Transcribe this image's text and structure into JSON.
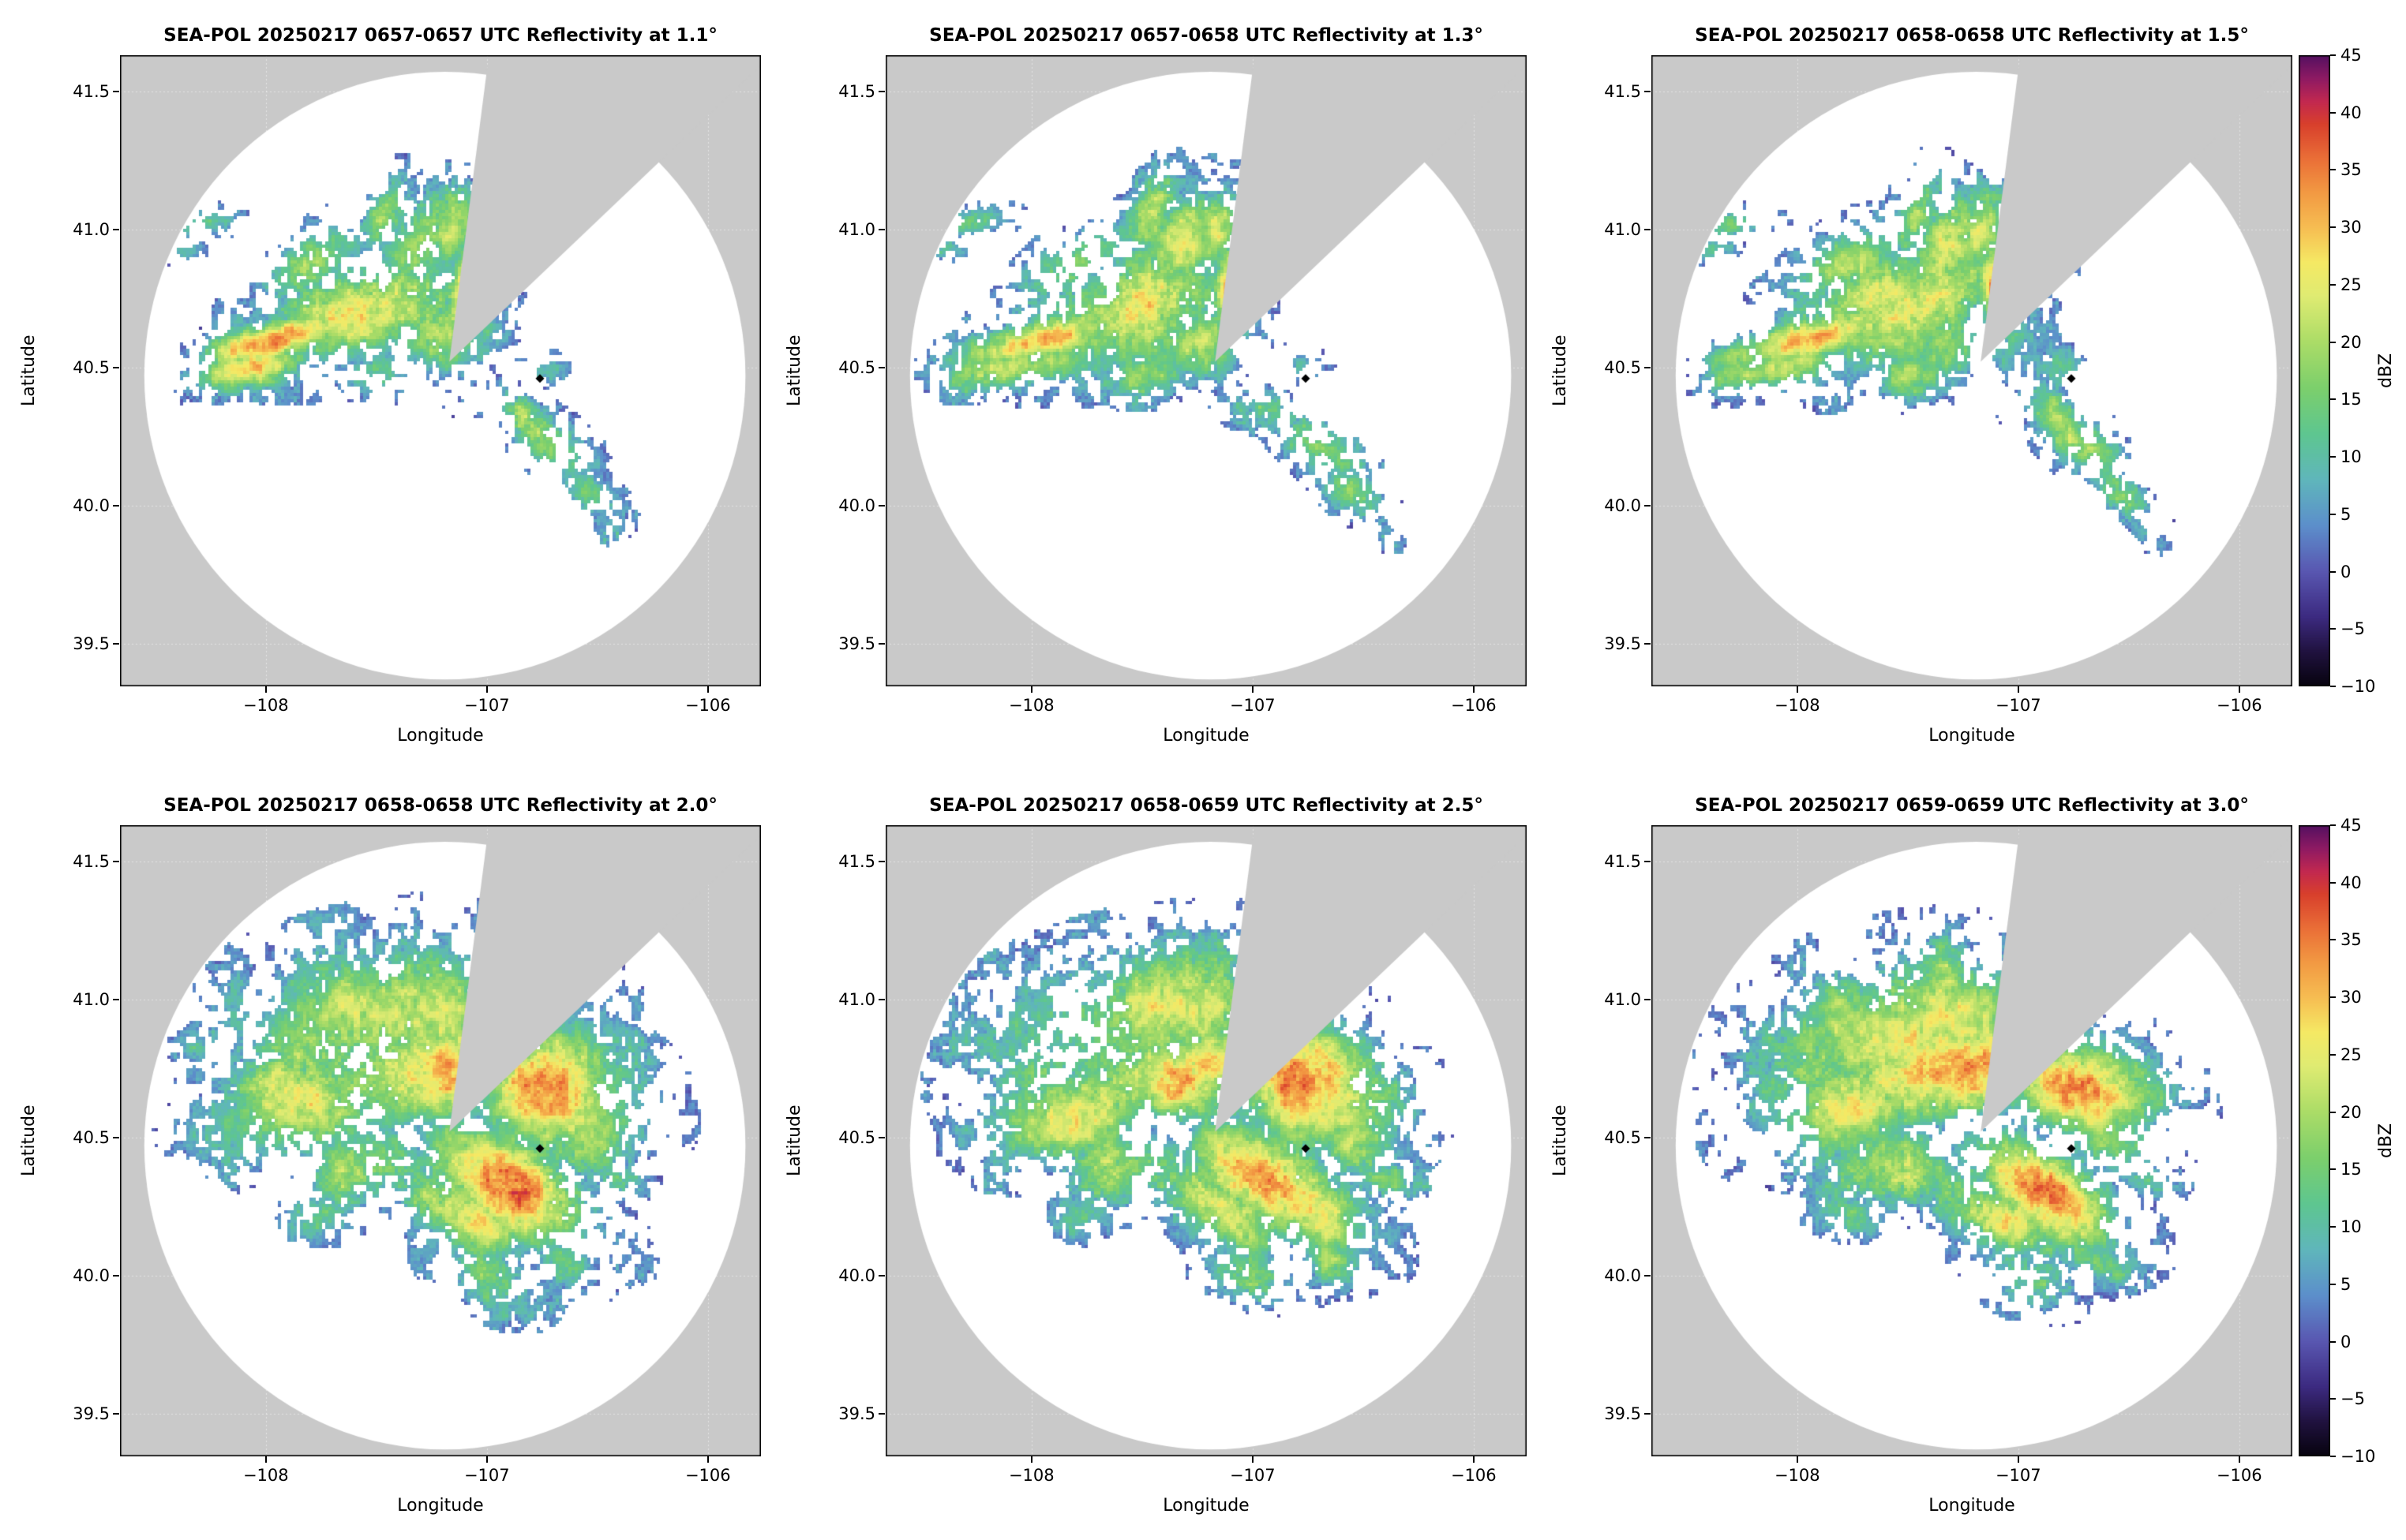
{
  "chart_data": {
    "type": "heatmap",
    "subtype": "radar_ppi_reflectivity_grid",
    "grid": {
      "rows": 2,
      "cols": 3
    },
    "panels": [
      {
        "title": "SEA-POL 20250217 0657-0657 UTC Reflectivity at 1.1°",
        "radar": "SEA-POL",
        "date": "20250217",
        "time_utc": "0657-0657",
        "elevation_deg": 1.1,
        "row": 0,
        "seed": 11,
        "scale": 1.0
      },
      {
        "title": "SEA-POL 20250217 0657-0658 UTC Reflectivity at 1.3°",
        "radar": "SEA-POL",
        "date": "20250217",
        "time_utc": "0657-0658",
        "elevation_deg": 1.3,
        "row": 0,
        "seed": 23,
        "scale": 1.04
      },
      {
        "title": "SEA-POL 20250217 0658-0658 UTC Reflectivity at 1.5°",
        "radar": "SEA-POL",
        "date": "20250217",
        "time_utc": "0658-0658",
        "elevation_deg": 1.5,
        "row": 0,
        "seed": 37,
        "scale": 1.08
      },
      {
        "title": "SEA-POL 20250217 0658-0658 UTC Reflectivity at 2.0°",
        "radar": "SEA-POL",
        "date": "20250217",
        "time_utc": "0658-0658",
        "elevation_deg": 2.0,
        "row": 1,
        "seed": 51,
        "scale": 1.0
      },
      {
        "title": "SEA-POL 20250217 0658-0659 UTC Reflectivity at 2.5°",
        "radar": "SEA-POL",
        "date": "20250217",
        "time_utc": "0658-0659",
        "elevation_deg": 2.5,
        "row": 1,
        "seed": 67,
        "scale": 0.96
      },
      {
        "title": "SEA-POL 20250217 0659-0659 UTC Reflectivity at 3.0°",
        "radar": "SEA-POL",
        "date": "20250217",
        "time_utc": "0659-0659",
        "elevation_deg": 3.0,
        "row": 1,
        "seed": 83,
        "scale": 0.92
      }
    ],
    "xlabel": "Longitude",
    "ylabel": "Latitude",
    "xlim": [
      -108.66,
      -105.76
    ],
    "ylim": [
      39.345,
      41.63
    ],
    "xticks": [
      -108,
      -107,
      -106
    ],
    "xtick_labels": [
      "−108",
      "−107",
      "−106"
    ],
    "yticks": [
      39.5,
      40.0,
      40.5,
      41.0,
      41.5
    ],
    "ytick_labels": [
      "39.5",
      "40.0",
      "40.5",
      "41.0",
      "41.5"
    ],
    "colorbar": {
      "label": "dBZ",
      "min": -10,
      "max": 45,
      "ticks": [
        45,
        40,
        35,
        30,
        25,
        20,
        15,
        10,
        5,
        0,
        -5,
        -10
      ],
      "tick_labels": [
        "45",
        "40",
        "35",
        "30",
        "25",
        "20",
        "15",
        "10",
        "5",
        "0",
        "−5",
        "−10"
      ]
    },
    "colormap": {
      "name": "spectral-reflectivity",
      "stops": [
        [
          -10,
          "#07030f"
        ],
        [
          -7,
          "#20123f"
        ],
        [
          -4,
          "#3c2a80"
        ],
        [
          0,
          "#5957b1"
        ],
        [
          4,
          "#5c8fcb"
        ],
        [
          8,
          "#5fb6bb"
        ],
        [
          12,
          "#5ec690"
        ],
        [
          16,
          "#7ccf6c"
        ],
        [
          20,
          "#abdc67"
        ],
        [
          24,
          "#dfeb72"
        ],
        [
          27,
          "#f5e964"
        ],
        [
          30,
          "#f6bd52"
        ],
        [
          33,
          "#f29a43"
        ],
        [
          36,
          "#ea6f37"
        ],
        [
          39,
          "#d8402c"
        ],
        [
          41,
          "#c22850"
        ],
        [
          43,
          "#8e1a63"
        ],
        [
          45,
          "#541060"
        ]
      ]
    },
    "scan": {
      "center_lon": -107.19,
      "center_lat": 40.47,
      "radius_lon_deg": 1.36,
      "radius_lat_deg": 1.1,
      "blanked_sector_az_deg": [
        7,
        45
      ],
      "sector_apex": [
        -107.17,
        40.52
      ],
      "site_marker": [
        -106.76,
        40.46
      ]
    },
    "colors": {
      "outside_scan": "#c9c9c9",
      "inside_scan": "#ffffff",
      "grid": "#ffffff",
      "frame": "#000000",
      "marker": "#000000",
      "page_bg": "#ffffff"
    },
    "echo_blobs": {
      "row0": [
        [
          -107.95,
          40.6,
          0.2,
          0.05,
          35,
          15
        ],
        [
          -108.08,
          40.5,
          0.16,
          0.05,
          27,
          10
        ],
        [
          -107.55,
          40.72,
          0.26,
          0.13,
          26,
          20
        ],
        [
          -107.78,
          40.88,
          0.15,
          0.07,
          22,
          35
        ],
        [
          -107.32,
          40.93,
          0.16,
          0.08,
          23,
          60
        ],
        [
          -107.46,
          41.06,
          0.11,
          0.05,
          20,
          70
        ],
        [
          -107.16,
          41.0,
          0.1,
          0.06,
          25,
          75
        ],
        [
          -107.08,
          40.8,
          0.1,
          0.05,
          36,
          80
        ],
        [
          -107.25,
          40.6,
          0.14,
          0.09,
          18,
          0
        ],
        [
          -108.3,
          41.02,
          0.1,
          0.035,
          18,
          10
        ],
        [
          -108.38,
          40.93,
          0.06,
          0.03,
          14,
          5
        ],
        [
          -106.86,
          40.33,
          0.1,
          0.05,
          16,
          -40
        ],
        [
          -106.7,
          40.22,
          0.12,
          0.06,
          22,
          -40
        ],
        [
          -106.55,
          40.05,
          0.1,
          0.05,
          18,
          -40
        ],
        [
          -106.97,
          40.42,
          0.06,
          0.04,
          5,
          0
        ],
        [
          -107.06,
          40.34,
          0.07,
          0.04,
          7,
          -30
        ],
        [
          -106.78,
          40.5,
          0.06,
          0.04,
          12,
          0
        ],
        [
          -107.5,
          40.47,
          0.11,
          0.06,
          15,
          0
        ],
        [
          -106.42,
          39.9,
          0.05,
          0.03,
          10,
          -40
        ]
      ],
      "row1": [
        [
          -107.45,
          40.9,
          0.38,
          0.2,
          24,
          10
        ],
        [
          -107.3,
          40.74,
          0.28,
          0.14,
          31,
          10
        ],
        [
          -107.8,
          40.6,
          0.24,
          0.13,
          24,
          15
        ],
        [
          -106.72,
          40.68,
          0.22,
          0.15,
          33,
          -20
        ],
        [
          -106.9,
          40.32,
          0.24,
          0.11,
          36,
          -35
        ],
        [
          -107.1,
          40.22,
          0.17,
          0.09,
          26,
          -35
        ],
        [
          -107.15,
          40.47,
          0.15,
          0.11,
          6,
          0
        ],
        [
          -106.97,
          40.52,
          0.09,
          0.07,
          4,
          0
        ],
        [
          -107.55,
          40.4,
          0.18,
          0.11,
          20,
          10
        ],
        [
          -107.95,
          40.73,
          0.14,
          0.08,
          18,
          25
        ],
        [
          -106.55,
          40.5,
          0.12,
          0.1,
          21,
          -10
        ],
        [
          -107.0,
          40.0,
          0.14,
          0.08,
          16,
          -30
        ],
        [
          -106.65,
          40.06,
          0.1,
          0.06,
          17,
          -35
        ],
        [
          -107.35,
          41.08,
          0.14,
          0.07,
          15,
          45
        ],
        [
          -107.75,
          40.22,
          0.11,
          0.06,
          12,
          -10
        ],
        [
          -106.4,
          40.35,
          0.08,
          0.05,
          14,
          -20
        ]
      ]
    }
  }
}
